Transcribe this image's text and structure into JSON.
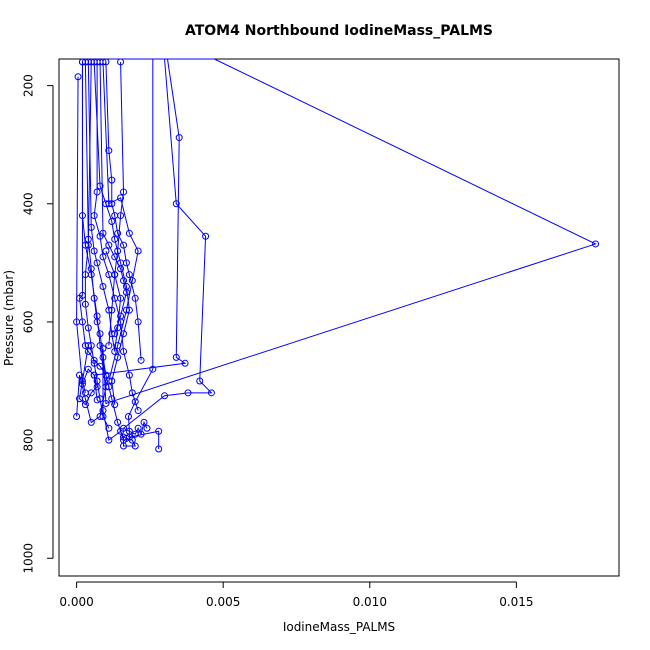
{
  "chart_data": {
    "type": "line",
    "title": "ATOM4 Northbound IodineMass_PALMS",
    "xlabel": "IodineMass_PALMS",
    "ylabel": "Pressure (mbar)",
    "x_ticks": [
      "0.000",
      "0.005",
      "0.010",
      "0.015"
    ],
    "x_tick_values": [
      0,
      0.005,
      0.01,
      0.015
    ],
    "y_ticks": [
      "200",
      "400",
      "600",
      "800",
      "1000"
    ],
    "y_tick_values": [
      200,
      400,
      600,
      800,
      1000
    ],
    "xlim": [
      -0.0006,
      0.0185
    ],
    "ylim": [
      1030,
      155
    ],
    "y_reversed": true,
    "grid": false,
    "legend": "none",
    "color": "#0000ff",
    "series": [
      {
        "x": [
          0.0032,
          0.0026,
          0.0026,
          0.002,
          0.00177,
          0.0018,
          0.0018,
          0.0028,
          0.0028
        ],
        "y": [
          150,
          150,
          680,
          735,
          760,
          785,
          795,
          785,
          815
        ]
      },
      {
        "x": [
          0.0031,
          0.0035,
          0.0034,
          0.0037,
          0.0006,
          0.0007
        ],
        "y": [
          150,
          288,
          660,
          670,
          690,
          732
        ]
      },
      {
        "x": [
          0.003,
          0.0034,
          0.0044,
          0.0042,
          0.0046,
          0.0038,
          0.003,
          0.0016,
          0.002,
          0.0021,
          0.0022,
          0.0023,
          0.0024
        ],
        "y": [
          150,
          400,
          455,
          700,
          720,
          720,
          725,
          780,
          790,
          780,
          790,
          770,
          780
        ]
      },
      {
        "x": [
          0.0011,
          0.0047,
          0.0177,
          0.001,
          0.0009,
          0.0009,
          0.0011,
          0.0015,
          0.0016,
          0.0016,
          0.002,
          0.0019,
          0.0017
        ],
        "y": [
          150,
          150,
          468,
          738,
          645,
          750,
          800,
          785,
          795,
          810,
          810,
          800,
          797
        ]
      },
      {
        "x": [
          5e-05,
          0.0,
          0.0002,
          0.0004,
          0.0006,
          0.0007,
          0.0005,
          0.0003,
          0.0001,
          0.0004,
          0.0002,
          0.0003
        ],
        "y": [
          185,
          600,
          705,
          680,
          690,
          710,
          720,
          740,
          730,
          640,
          700,
          720
        ]
      },
      {
        "x": [
          0.0002,
          0.0002,
          0.0003,
          0.0005,
          0.0007,
          0.0008,
          0.001,
          0.0008,
          0.0005,
          0.0003,
          0.0001,
          0.0
        ],
        "y": [
          160,
          420,
          470,
          520,
          590,
          640,
          710,
          760,
          770,
          730,
          690,
          760
        ]
      },
      {
        "x": [
          0.0004,
          0.0005,
          0.0006,
          0.0007,
          0.0009,
          0.0011,
          0.0012,
          0.0013,
          0.0014,
          0.0015,
          0.0013,
          0.001
        ],
        "y": [
          160,
          440,
          480,
          500,
          540,
          580,
          620,
          650,
          610,
          560,
          520,
          480
        ]
      },
      {
        "x": [
          0.0006,
          0.0008,
          0.001,
          0.0012,
          0.0013,
          0.0015,
          0.0017,
          0.0018,
          0.0016,
          0.0014,
          0.0012,
          0.0013
        ],
        "y": [
          160,
          370,
          400,
          430,
          460,
          500,
          540,
          580,
          620,
          660,
          700,
          740
        ]
      },
      {
        "x": [
          0.0007,
          0.0007,
          0.0006,
          0.0008,
          0.0009,
          0.0011,
          0.0013,
          0.0015,
          0.0016,
          0.0018,
          0.0019,
          0.0021
        ],
        "y": [
          160,
          380,
          420,
          455,
          490,
          520,
          560,
          600,
          650,
          690,
          720,
          750
        ]
      },
      {
        "x": [
          0.001,
          0.0011,
          0.0012,
          0.0012,
          0.0013,
          0.0014,
          0.0016,
          0.0017,
          0.0018,
          0.002,
          0.0021,
          0.0022
        ],
        "y": [
          160,
          310,
          360,
          400,
          420,
          450,
          470,
          500,
          520,
          560,
          600,
          665
        ]
      },
      {
        "x": [
          0.0003,
          0.0004,
          0.0005,
          0.0006,
          0.0007,
          0.0008,
          0.0009,
          0.001,
          0.0011,
          0.0012,
          0.0014,
          0.0016
        ],
        "y": [
          160,
          460,
          510,
          560,
          600,
          620,
          660,
          690,
          710,
          730,
          770,
          800
        ]
      },
      {
        "x": [
          0.0005,
          0.0004,
          0.0003,
          0.0003,
          0.0004,
          0.0005,
          0.0006,
          0.0007,
          0.0008,
          0.0009,
          0.0011
        ],
        "y": [
          160,
          470,
          520,
          570,
          610,
          640,
          670,
          700,
          730,
          760,
          780
        ]
      },
      {
        "x": [
          0.0002,
          0.0002,
          0.0001,
          0.0002,
          0.0003,
          0.0004,
          0.0006,
          0.0008,
          0.001
        ],
        "y": [
          160,
          555,
          560,
          600,
          640,
          650,
          665,
          675,
          690
        ]
      },
      {
        "x": [
          0.0008,
          0.0009,
          0.0011,
          0.0013,
          0.0015,
          0.0016,
          0.0017,
          0.0015,
          0.0013
        ],
        "y": [
          160,
          450,
          470,
          490,
          510,
          530,
          550,
          590,
          620
        ]
      },
      {
        "x": [
          0.0009,
          0.0011,
          0.0015,
          0.0018,
          0.0021,
          0.0019,
          0.0017,
          0.0014,
          0.0011
        ],
        "y": [
          160,
          400,
          390,
          450,
          480,
          530,
          580,
          640,
          700
        ]
      },
      {
        "x": [
          0.0015,
          0.0016,
          0.0015,
          0.0014,
          0.0013,
          0.0012,
          0.0011
        ],
        "y": [
          160,
          380,
          420,
          480,
          520,
          580,
          640
        ]
      }
    ]
  }
}
